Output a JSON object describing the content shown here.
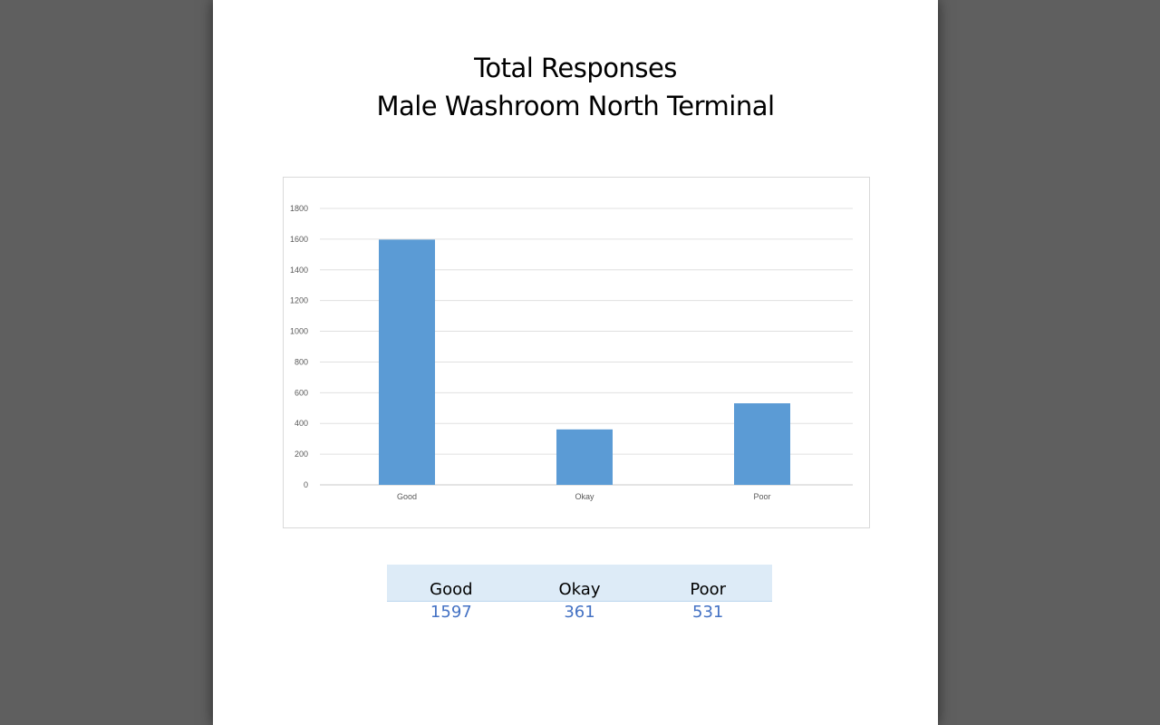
{
  "page": {
    "title_line1": "Total Responses",
    "title_line2": "Male Washroom North Terminal"
  },
  "chart_data": {
    "type": "bar",
    "categories": [
      "Good",
      "Okay",
      "Poor"
    ],
    "values": [
      1597,
      361,
      531
    ],
    "ylim": [
      0,
      1800
    ],
    "yticks": [
      0,
      200,
      400,
      600,
      800,
      1000,
      1200,
      1400,
      1600,
      1800
    ],
    "grid": true,
    "bar_color": "#5b9bd5"
  },
  "summary": {
    "headers": [
      "Good",
      "Okay",
      "Poor"
    ],
    "values": [
      "1597",
      "361",
      "531"
    ]
  }
}
